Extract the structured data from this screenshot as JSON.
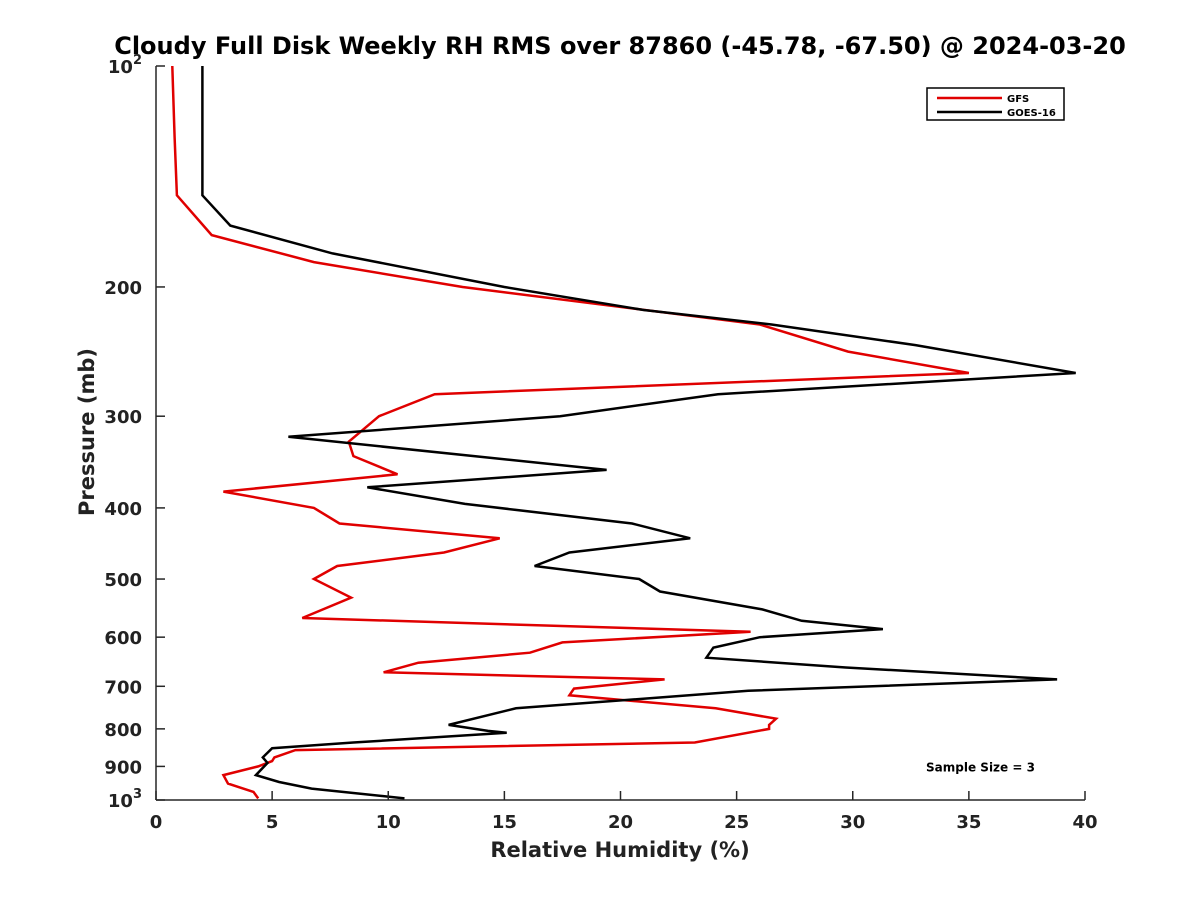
{
  "chart_data": {
    "type": "line",
    "title": "Cloudy Full Disk Weekly RH RMS over 87860 (-45.78, -67.50) @ 2024-03-20",
    "xlabel": "Relative Humidity (%)",
    "ylabel": "Pressure (mb)",
    "xlim": [
      0,
      40
    ],
    "ylim": [
      100,
      1000
    ],
    "y_scale": "log",
    "y_reversed": true,
    "grid": false,
    "legend_position": "top-right",
    "x_ticks": [
      0,
      5,
      10,
      15,
      20,
      25,
      30,
      35,
      40
    ],
    "x_tick_labels": [
      "0",
      "5",
      "10",
      "15",
      "20",
      "25",
      "30",
      "35",
      "40"
    ],
    "y_ticks": [
      {
        "value": 100,
        "base": "10",
        "exp": "2"
      },
      {
        "value": 200,
        "label": "200"
      },
      {
        "value": 300,
        "label": "300"
      },
      {
        "value": 400,
        "label": "400"
      },
      {
        "value": 500,
        "label": "500"
      },
      {
        "value": 600,
        "label": "600"
      },
      {
        "value": 700,
        "label": "700"
      },
      {
        "value": 800,
        "label": "800"
      },
      {
        "value": 900,
        "label": "900"
      },
      {
        "value": 1000,
        "base": "10",
        "exp": "3"
      }
    ],
    "series": [
      {
        "name": "GFS",
        "color": "#e00000",
        "points": [
          [
            0.7,
            100
          ],
          [
            0.8,
            125
          ],
          [
            0.9,
            150
          ],
          [
            2.4,
            170
          ],
          [
            6.8,
            185
          ],
          [
            13.2,
            200
          ],
          [
            26.0,
            225
          ],
          [
            29.8,
            245
          ],
          [
            35.0,
            262
          ],
          [
            12.0,
            280
          ],
          [
            9.6,
            300
          ],
          [
            8.3,
            325
          ],
          [
            8.5,
            340
          ],
          [
            10.4,
            360
          ],
          [
            2.9,
            380
          ],
          [
            6.8,
            400
          ],
          [
            7.9,
            420
          ],
          [
            14.8,
            440
          ],
          [
            12.4,
            460
          ],
          [
            7.8,
            480
          ],
          [
            6.8,
            500
          ],
          [
            8.4,
            530
          ],
          [
            6.3,
            565
          ],
          [
            25.6,
            590
          ],
          [
            17.5,
            610
          ],
          [
            16.1,
            630
          ],
          [
            11.3,
            650
          ],
          [
            9.8,
            670
          ],
          [
            21.9,
            685
          ],
          [
            18.0,
            705
          ],
          [
            17.8,
            720
          ],
          [
            24.1,
            750
          ],
          [
            26.7,
            775
          ],
          [
            26.4,
            790
          ],
          [
            26.4,
            800
          ],
          [
            23.2,
            835
          ],
          [
            6.0,
            855
          ],
          [
            5.1,
            875
          ],
          [
            5.0,
            885
          ],
          [
            4.4,
            900
          ],
          [
            2.9,
            925
          ],
          [
            3.1,
            950
          ],
          [
            4.2,
            975
          ],
          [
            4.4,
            995
          ]
        ]
      },
      {
        "name": "GOES-16",
        "color": "#000000",
        "points": [
          [
            2.0,
            100
          ],
          [
            2.0,
            150
          ],
          [
            3.2,
            165
          ],
          [
            7.6,
            180
          ],
          [
            15.0,
            200
          ],
          [
            21.0,
            215
          ],
          [
            26.5,
            225
          ],
          [
            32.7,
            240
          ],
          [
            39.6,
            262
          ],
          [
            24.2,
            280
          ],
          [
            17.4,
            300
          ],
          [
            5.7,
            320
          ],
          [
            19.4,
            355
          ],
          [
            9.1,
            375
          ],
          [
            13.3,
            395
          ],
          [
            20.5,
            420
          ],
          [
            23.0,
            440
          ],
          [
            17.8,
            460
          ],
          [
            16.3,
            480
          ],
          [
            20.8,
            500
          ],
          [
            21.7,
            520
          ],
          [
            26.1,
            550
          ],
          [
            27.8,
            570
          ],
          [
            31.3,
            585
          ],
          [
            26.0,
            600
          ],
          [
            24.0,
            620
          ],
          [
            23.7,
            640
          ],
          [
            29.7,
            660
          ],
          [
            38.8,
            685
          ],
          [
            25.5,
            710
          ],
          [
            15.5,
            750
          ],
          [
            12.6,
            790
          ],
          [
            14.3,
            805
          ],
          [
            15.1,
            810
          ],
          [
            8.5,
            835
          ],
          [
            5.0,
            850
          ],
          [
            4.6,
            875
          ],
          [
            4.8,
            890
          ],
          [
            4.3,
            925
          ],
          [
            5.3,
            945
          ],
          [
            6.7,
            965
          ],
          [
            10.7,
            995
          ]
        ]
      }
    ],
    "annotations": [
      {
        "text": "Sample Size = 3",
        "x": 35.5,
        "y": 900
      }
    ]
  }
}
